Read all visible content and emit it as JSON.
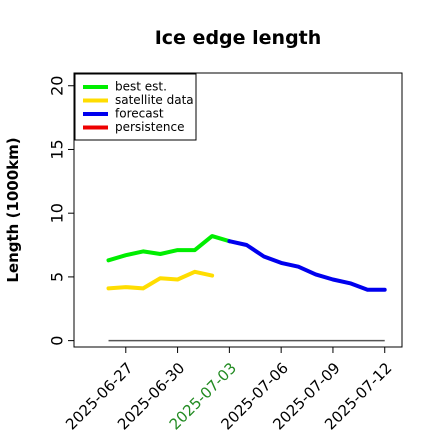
{
  "chart_data": {
    "type": "line",
    "title": "Ice edge length",
    "xlabel": "",
    "ylabel": "Length (1000km)",
    "ylim": [
      -0.5,
      21
    ],
    "yticks": [
      "0",
      "5",
      "10",
      "15",
      "20"
    ],
    "xlim": [
      "2025-06-24",
      "2025-07-13"
    ],
    "xticks": [
      {
        "label": "2025-06-27",
        "color": "#000000"
      },
      {
        "label": "2025-06-30",
        "color": "#000000"
      },
      {
        "label": "2025-07-03",
        "color": "#228B22"
      },
      {
        "label": "2025-07-06",
        "color": "#000000"
      },
      {
        "label": "2025-07-09",
        "color": "#000000"
      },
      {
        "label": "2025-07-12",
        "color": "#000000"
      }
    ],
    "grid": false,
    "legend_position": "top-left",
    "series": [
      {
        "name": "best est.",
        "color": "#00ee00",
        "x": [
          "2025-06-26",
          "2025-06-27",
          "2025-06-28",
          "2025-06-29",
          "2025-06-30",
          "2025-07-01",
          "2025-07-02",
          "2025-07-03"
        ],
        "y": [
          6.3,
          6.7,
          7.0,
          6.8,
          7.1,
          7.1,
          8.2,
          7.8
        ]
      },
      {
        "name": "satellite data",
        "color": "#ffdd00",
        "x": [
          "2025-06-26",
          "2025-06-27",
          "2025-06-28",
          "2025-06-29",
          "2025-06-30",
          "2025-07-01",
          "2025-07-02"
        ],
        "y": [
          4.1,
          4.2,
          4.1,
          4.9,
          4.8,
          5.4,
          5.1
        ]
      },
      {
        "name": "forecast",
        "color": "#0000ee",
        "x": [
          "2025-07-03",
          "2025-07-04",
          "2025-07-05",
          "2025-07-06",
          "2025-07-07",
          "2025-07-08",
          "2025-07-09",
          "2025-07-10",
          "2025-07-11",
          "2025-07-12"
        ],
        "y": [
          7.8,
          7.5,
          6.6,
          6.1,
          5.8,
          5.2,
          4.8,
          4.5,
          4.0,
          4.0
        ]
      },
      {
        "name": "persistence",
        "color": "#ee0000",
        "x": [],
        "y": []
      }
    ],
    "reference_line": {
      "color": "#555555",
      "x": [
        "2025-06-26",
        "2025-07-12"
      ],
      "y": [
        0,
        0
      ]
    }
  }
}
